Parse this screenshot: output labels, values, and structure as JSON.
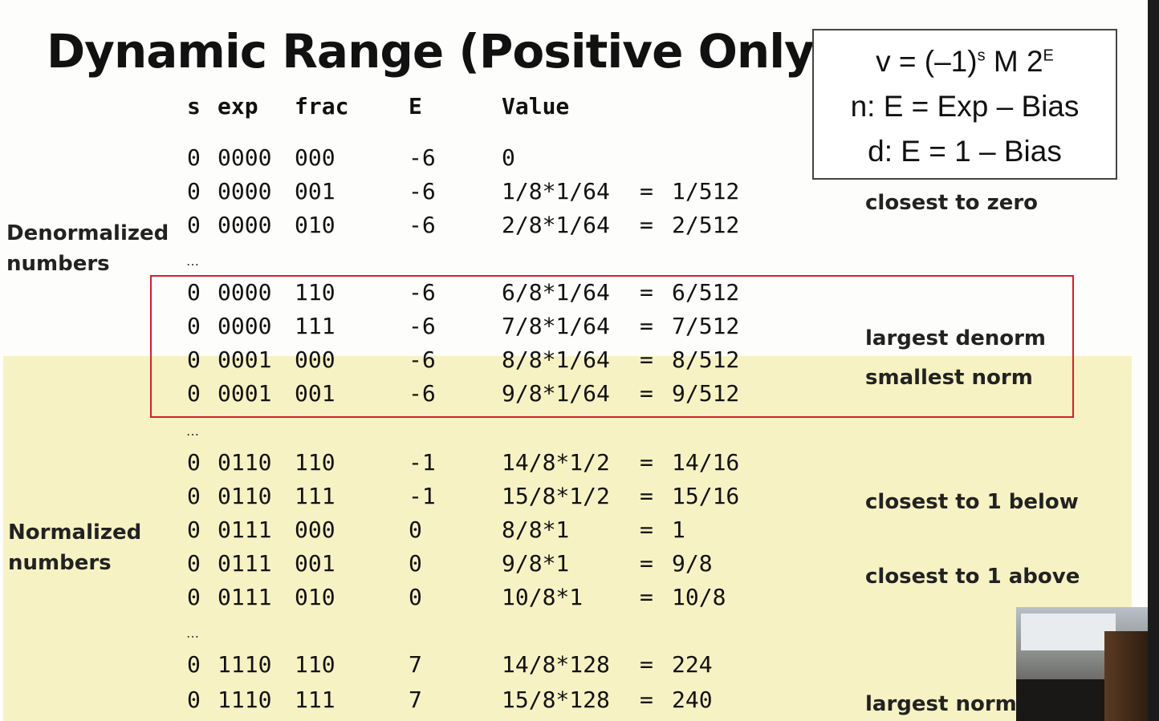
{
  "title": "Dynamic Range (Positive Only)",
  "formula": {
    "line1_left": "v = (–1)",
    "line1_s": "s",
    "line1_mid": " M 2",
    "line1_e": "E",
    "line2": "n: E = Exp – Bias",
    "line3": "d: E = 1 – Bias"
  },
  "headers": {
    "s": "s",
    "exp": "exp",
    "frac": "frac",
    "E": "E",
    "value": "Value"
  },
  "ellipsis": "…",
  "rows": [
    {
      "s": "0",
      "exp": "0000",
      "frac": "000",
      "E": "-6",
      "expr": "0",
      "eq": "",
      "res": ""
    },
    {
      "s": "0",
      "exp": "0000",
      "frac": "001",
      "E": "-6",
      "expr": "1/8*1/64",
      "eq": "=",
      "res": "1/512"
    },
    {
      "s": "0",
      "exp": "0000",
      "frac": "010",
      "E": "-6",
      "expr": "2/8*1/64",
      "eq": "=",
      "res": "2/512"
    },
    {
      "s": "0",
      "exp": "0000",
      "frac": "110",
      "E": "-6",
      "expr": "6/8*1/64",
      "eq": "=",
      "res": "6/512"
    },
    {
      "s": "0",
      "exp": "0000",
      "frac": "111",
      "E": "-6",
      "expr": "7/8*1/64",
      "eq": "=",
      "res": "7/512"
    },
    {
      "s": "0",
      "exp": "0001",
      "frac": "000",
      "E": "-6",
      "expr": "8/8*1/64",
      "eq": "=",
      "res": "8/512"
    },
    {
      "s": "0",
      "exp": "0001",
      "frac": "001",
      "E": "-6",
      "expr": "9/8*1/64",
      "eq": "=",
      "res": "9/512"
    },
    {
      "s": "0",
      "exp": "0110",
      "frac": "110",
      "E": "-1",
      "expr": "14/8*1/2",
      "eq": "=",
      "res": "14/16"
    },
    {
      "s": "0",
      "exp": "0110",
      "frac": "111",
      "E": "-1",
      "expr": "15/8*1/2",
      "eq": "=",
      "res": "15/16"
    },
    {
      "s": "0",
      "exp": "0111",
      "frac": "000",
      "E": "0",
      "expr": "8/8*1",
      "eq": "=",
      "res": "1"
    },
    {
      "s": "0",
      "exp": "0111",
      "frac": "001",
      "E": "0",
      "expr": "9/8*1",
      "eq": "=",
      "res": "9/8"
    },
    {
      "s": "0",
      "exp": "0111",
      "frac": "010",
      "E": "0",
      "expr": "10/8*1",
      "eq": "=",
      "res": "10/8"
    },
    {
      "s": "0",
      "exp": "1110",
      "frac": "110",
      "E": "7",
      "expr": "14/8*128",
      "eq": "=",
      "res": "224"
    },
    {
      "s": "0",
      "exp": "1110",
      "frac": "111",
      "E": "7",
      "expr": "15/8*128",
      "eq": "=",
      "res": "240"
    }
  ],
  "labels": {
    "denorm_line1": "Denormalized",
    "denorm_line2": "numbers",
    "norm_line1": "Normalized",
    "norm_line2": "numbers"
  },
  "notes": {
    "closest_zero": "closest to zero",
    "largest_denorm": "largest denorm",
    "smallest_norm": "smallest norm",
    "closest_1_below": "closest to 1 below",
    "closest_1_above": "closest to 1 above",
    "largest_norm": "largest norm"
  }
}
